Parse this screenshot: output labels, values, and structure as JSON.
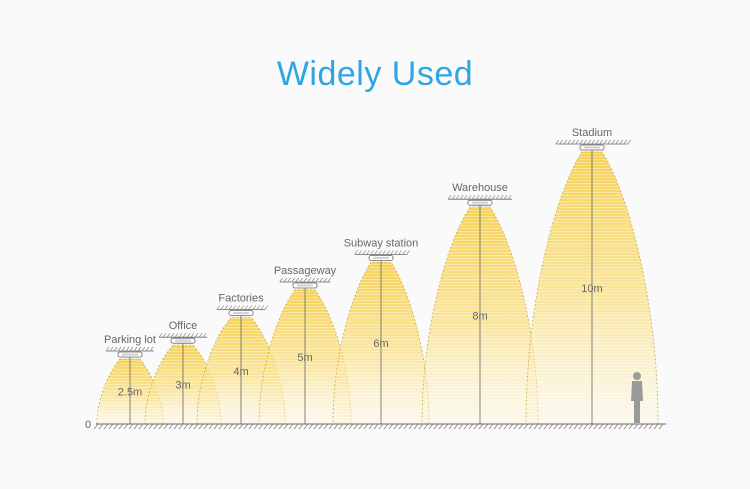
{
  "title": "Widely Used",
  "ground_label": "0",
  "colors": {
    "title": "#2ea6e6",
    "beam_core": "#f7d45a",
    "beam_edge": "#fbeaa8",
    "fixture": "#d0d0d0",
    "line": "#666666",
    "label": "#666666",
    "person": "#9a9a9a"
  },
  "scenes": [
    {
      "name": "Parking lot",
      "height_label": "2.5m",
      "height_m": 2.5
    },
    {
      "name": "Office",
      "height_label": "3m",
      "height_m": 3
    },
    {
      "name": "Factories",
      "height_label": "4m",
      "height_m": 4
    },
    {
      "name": "Passageway",
      "height_label": "5m",
      "height_m": 5
    },
    {
      "name": "Subway station",
      "height_label": "6m",
      "height_m": 6
    },
    {
      "name": "Warehouse",
      "height_label": "8m",
      "height_m": 8
    },
    {
      "name": "Stadium",
      "height_label": "10m",
      "height_m": 10
    }
  ],
  "icons": {
    "person": "person-silhouette-icon",
    "fixture": "light-fixture-icon"
  }
}
